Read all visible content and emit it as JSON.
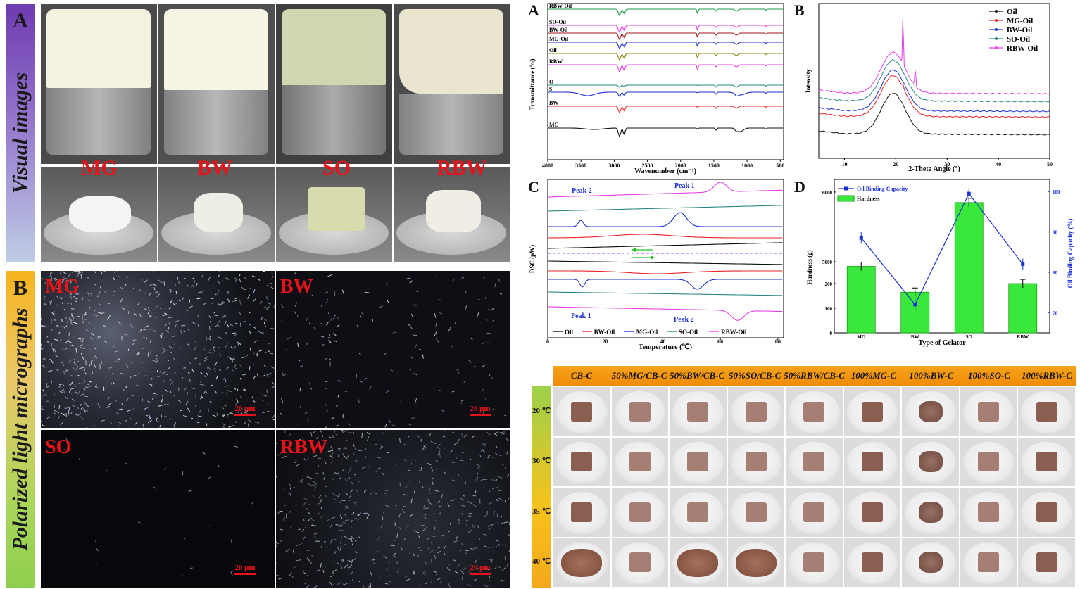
{
  "left_panel": {
    "A": {
      "letter": "A",
      "title": "Visual images",
      "labels": [
        "MG",
        "BW",
        "SO",
        "RBW"
      ]
    },
    "B": {
      "letter": "B",
      "title": "Polarized light micrographs",
      "labels": [
        "MG",
        "BW",
        "SO",
        "RBW"
      ],
      "scale_bar": "20 μm"
    }
  },
  "colors": {
    "label_red": "#e8131a",
    "oil": "#111111",
    "mg": "#e8262b",
    "bw": "#1b2fd6",
    "so": "#2a8a80",
    "rbw": "#e83ee6"
  },
  "ftir": {
    "letter": "A",
    "xlabel": "Wavenumber (cm⁻¹)",
    "ylabel": "Transmittance (%)",
    "xticks": [
      "4000",
      "3500",
      "3000",
      "2500",
      "2000",
      "1500",
      "1000",
      "500"
    ],
    "curve_labels": [
      "RBW-Oil",
      "SO-Oil",
      "BW-Oil",
      "MG-Oil",
      "Oil",
      "RBW",
      "O",
      "S",
      "BW",
      "MG"
    ]
  },
  "xrd": {
    "letter": "B",
    "xlabel": "2-Theta Angle (°)",
    "ylabel": "Intensity",
    "xticks": [
      "10",
      "20",
      "30",
      "40",
      "50"
    ],
    "legend": [
      "Oil",
      "MG-Oil",
      "BW-Oil",
      "SO-Oil",
      "RBW-Oil"
    ]
  },
  "dsc": {
    "letter": "C",
    "xlabel": "Temperature (℃)",
    "ylabel": "DSC (μW)",
    "xticks": [
      "0",
      "20",
      "40",
      "60",
      "80"
    ],
    "annotations": [
      "Peak 2",
      "Peak 1",
      "Peak 1",
      "Peak 2"
    ],
    "legend": [
      "Oil",
      "BW-Oil",
      "MG-Oil",
      "SO-Oil",
      "RBW-Oil"
    ]
  },
  "chart_data": {
    "type": "bar",
    "title": "",
    "xlabel": "Type of Gelator",
    "ylabel": "Hardness (g)",
    "y2label": "Oil Binding Capacity (%)",
    "categories": [
      "MG",
      "BW",
      "SO",
      "RBW"
    ],
    "yticks": [
      "0",
      "100",
      "200",
      "5000",
      "6000"
    ],
    "y2ticks": [
      "70",
      "80",
      "90",
      "100"
    ],
    "series": [
      {
        "name": "Hardness",
        "type": "bar",
        "values": [
          270,
          165,
          5850,
          200
        ]
      },
      {
        "name": "Oil Binding Capacity",
        "type": "line",
        "values": [
          88.5,
          72.0,
          99.5,
          82.0
        ]
      }
    ],
    "letter": "D"
  },
  "photo_grid": {
    "columns": [
      "CB-C",
      "50%MG/CB-C",
      "50%BW/CB-C",
      "50%SO/CB-C",
      "50%RBW/CB-C",
      "100%MG-C",
      "100%BW-C",
      "100%SO-C",
      "100%RBW-C"
    ],
    "rows": [
      "20 ℃",
      "30 ℃",
      "35 ℃",
      "40 ℃"
    ]
  }
}
